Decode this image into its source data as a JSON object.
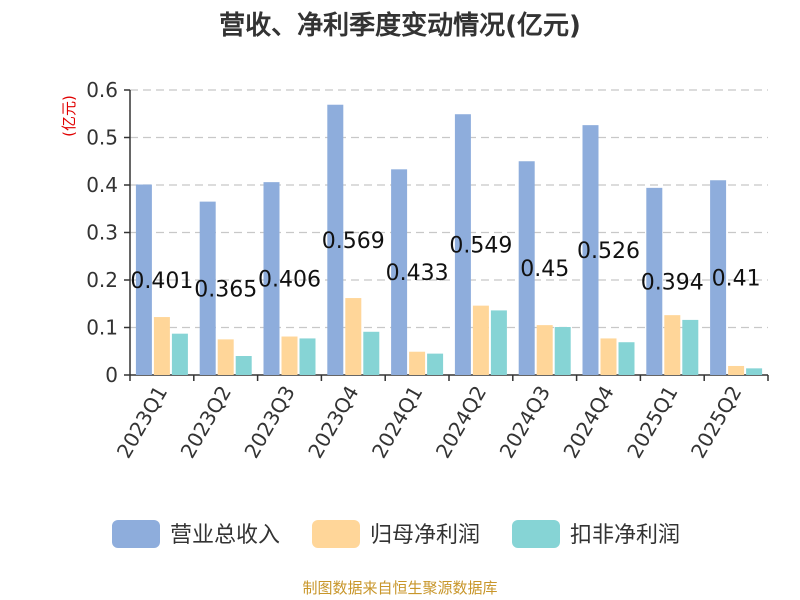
{
  "chart_data": {
    "type": "bar",
    "title": "营收、净利季度变动情况(亿元)",
    "ylabel": "(亿元)",
    "xlabel": "",
    "ylim": [
      0,
      0.6
    ],
    "yticks": [
      0,
      0.1,
      0.2,
      0.3,
      0.4,
      0.5,
      0.6
    ],
    "grid": true,
    "legend_position": "bottom",
    "categories": [
      "2023Q1",
      "2023Q2",
      "2023Q3",
      "2023Q4",
      "2024Q1",
      "2024Q2",
      "2024Q3",
      "2024Q4",
      "2025Q1",
      "2025Q2"
    ],
    "series": [
      {
        "name": "营业总收入",
        "color": "#8eaddc",
        "values": [
          0.401,
          0.365,
          0.406,
          0.569,
          0.433,
          0.549,
          0.45,
          0.526,
          0.394,
          0.41
        ],
        "data_labels": [
          "0.401",
          "0.365",
          "0.406",
          "0.569",
          "0.433",
          "0.549",
          "0.45",
          "0.526",
          "0.394",
          "0.41"
        ]
      },
      {
        "name": "归母净利润",
        "color": "#ffd699",
        "values": [
          0.122,
          0.075,
          0.081,
          0.162,
          0.049,
          0.146,
          0.105,
          0.077,
          0.126,
          0.019
        ]
      },
      {
        "name": "扣非净利润",
        "color": "#86d4d5",
        "values": [
          0.087,
          0.04,
          0.077,
          0.091,
          0.045,
          0.136,
          0.101,
          0.069,
          0.116,
          0.014
        ]
      }
    ]
  },
  "source_text": "制图数据来自恒生聚源数据库"
}
